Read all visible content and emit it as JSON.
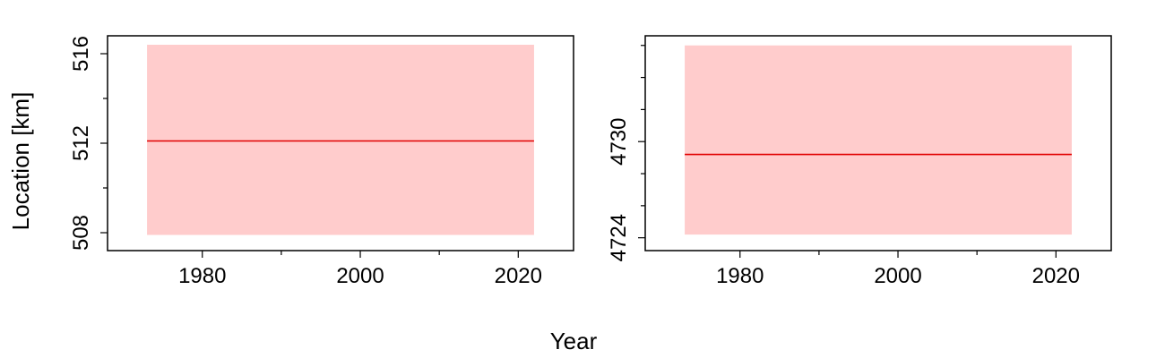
{
  "figure": {
    "xlabel": "Year",
    "ylabel": "Location [km]"
  },
  "chart_data": [
    {
      "type": "line",
      "xlim": [
        1968,
        2027
      ],
      "ylim": [
        507.2,
        516.8
      ],
      "xticks": [
        1980,
        1990,
        2000,
        2010,
        2020
      ],
      "xtick_labels": [
        "1980",
        "",
        "2000",
        "",
        "2020"
      ],
      "yticks": [
        508,
        510,
        512,
        514,
        516
      ],
      "ytick_labels": [
        "508",
        "",
        "512",
        "",
        "516"
      ],
      "series": [
        {
          "x": [
            1973,
            2022
          ],
          "y": [
            512.1,
            512.1
          ],
          "color": "#e00000"
        }
      ],
      "band": {
        "x": [
          1973,
          2022
        ],
        "lower": 507.9,
        "upper": 516.4,
        "color": "#ffcccc"
      }
    },
    {
      "type": "line",
      "xlim": [
        1968,
        2027
      ],
      "ylim": [
        4723.2,
        4736.6
      ],
      "xticks": [
        1980,
        1990,
        2000,
        2010,
        2020
      ],
      "xtick_labels": [
        "1980",
        "",
        "2000",
        "",
        "2020"
      ],
      "yticks": [
        4724,
        4726,
        4728,
        4730,
        4732,
        4734,
        4736
      ],
      "ytick_labels": [
        "4724",
        "",
        "",
        "4730",
        "",
        "",
        ""
      ],
      "series": [
        {
          "x": [
            1973,
            2022
          ],
          "y": [
            4729.2,
            4729.2
          ],
          "color": "#e00000"
        }
      ],
      "band": {
        "x": [
          1973,
          2022
        ],
        "lower": 4724.2,
        "upper": 4736.0,
        "color": "#ffcccc"
      }
    }
  ]
}
